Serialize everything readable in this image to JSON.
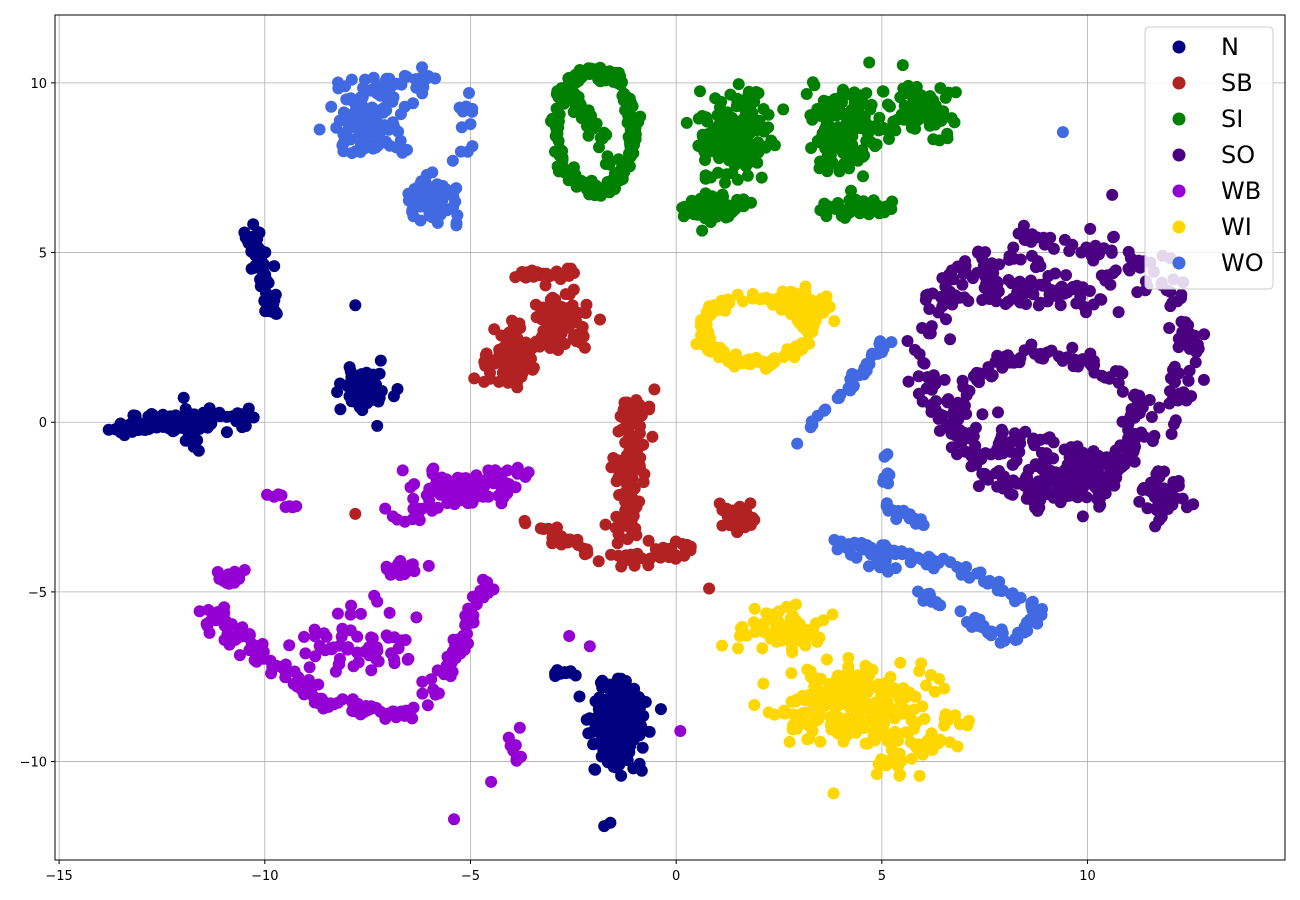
{
  "chart_data": {
    "type": "scatter",
    "title": "",
    "xlabel": "",
    "ylabel": "",
    "xlim": [
      -15.1,
      14.8
    ],
    "ylim": [
      -12.9,
      12.0
    ],
    "xticks": [
      -15,
      -10,
      -5,
      0,
      5,
      10
    ],
    "yticks": [
      -10,
      -5,
      0,
      5,
      10
    ],
    "grid": true,
    "legend_position": "top-right",
    "series": [
      {
        "name": "N",
        "color": "#000080",
        "clusters": [
          {
            "shape": "blob",
            "center": [
              -12.0,
              0.0
            ],
            "spread": [
              1.2,
              0.25
            ],
            "n": 70
          },
          {
            "shape": "segment",
            "from": [
              -13.7,
              -0.2
            ],
            "to": [
              -10.2,
              0.25
            ],
            "jitter": 0.08,
            "n": 60
          },
          {
            "shape": "segment",
            "from": [
              -11.9,
              0.7
            ],
            "to": [
              -11.8,
              -1.0
            ],
            "jitter": 0.12,
            "n": 20
          },
          {
            "shape": "segment",
            "from": [
              -10.35,
              5.8
            ],
            "to": [
              -9.8,
              3.2
            ],
            "jitter": 0.1,
            "n": 55
          },
          {
            "shape": "blob",
            "center": [
              -7.6,
              1.0
            ],
            "spread": [
              0.45,
              0.55
            ],
            "n": 90
          },
          {
            "shape": "point",
            "center": [
              -7.8,
              3.45
            ]
          },
          {
            "shape": "blob",
            "center": [
              -1.4,
              -8.8
            ],
            "spread": [
              0.55,
              1.1
            ],
            "n": 220
          },
          {
            "shape": "segment",
            "from": [
              -3.3,
              -7.4
            ],
            "to": [
              -2.4,
              -7.4
            ],
            "jitter": 0.05,
            "n": 10
          },
          {
            "shape": "point",
            "center": [
              -1.6,
              -11.8
            ]
          },
          {
            "shape": "point",
            "center": [
              -1.75,
              -11.9
            ]
          }
        ]
      },
      {
        "name": "SB",
        "color": "#b22222",
        "clusters": [
          {
            "shape": "blob",
            "center": [
              -4.0,
              1.8
            ],
            "spread": [
              0.55,
              0.8
            ],
            "n": 110
          },
          {
            "shape": "blob",
            "center": [
              -2.8,
              3.0
            ],
            "spread": [
              0.55,
              0.75
            ],
            "n": 110
          },
          {
            "shape": "segment",
            "from": [
              -3.8,
              4.3
            ],
            "to": [
              -2.4,
              4.4
            ],
            "jitter": 0.08,
            "n": 25
          },
          {
            "shape": "segment",
            "from": [
              -1.0,
              0.8
            ],
            "to": [
              -1.2,
              -3.5
            ],
            "jitter": 0.2,
            "n": 110
          },
          {
            "shape": "segment",
            "from": [
              -3.8,
              -2.8
            ],
            "to": [
              -1.7,
              -4.1
            ],
            "jitter": 0.1,
            "n": 25
          },
          {
            "shape": "segment",
            "from": [
              -1.4,
              -4.1
            ],
            "to": [
              0.6,
              -3.7
            ],
            "jitter": 0.15,
            "n": 40
          },
          {
            "shape": "blob",
            "center": [
              1.5,
              -2.8
            ],
            "spread": [
              0.4,
              0.3
            ],
            "n": 45
          },
          {
            "shape": "point",
            "center": [
              -7.8,
              -2.7
            ]
          },
          {
            "shape": "point",
            "center": [
              0.8,
              -4.9
            ]
          },
          {
            "shape": "point",
            "center": [
              2.9,
              -6.2
            ]
          }
        ]
      },
      {
        "name": "SI",
        "color": "#008000",
        "clusters": [
          {
            "shape": "ring",
            "center": [
              -2.0,
              8.6
            ],
            "radius": [
              0.95,
              1.75
            ],
            "n": 200
          },
          {
            "shape": "segment",
            "from": [
              -2.6,
              9.7
            ],
            "to": [
              -1.5,
              7.5
            ],
            "jitter": 0.15,
            "n": 30
          },
          {
            "shape": "blob",
            "center": [
              1.5,
              8.5
            ],
            "spread": [
              0.8,
              1.3
            ],
            "n": 140
          },
          {
            "shape": "blob",
            "center": [
              1.0,
              6.3
            ],
            "spread": [
              0.6,
              0.35
            ],
            "n": 70
          },
          {
            "shape": "blob",
            "center": [
              4.0,
              8.6
            ],
            "spread": [
              0.9,
              1.1
            ],
            "n": 140
          },
          {
            "shape": "blob",
            "center": [
              5.9,
              9.3
            ],
            "spread": [
              0.7,
              0.7
            ],
            "n": 80
          },
          {
            "shape": "blob",
            "center": [
              4.5,
              6.3
            ],
            "spread": [
              0.8,
              0.25
            ],
            "n": 50
          }
        ]
      },
      {
        "name": "SO",
        "color": "#4b0082",
        "clusters": [
          {
            "shape": "ring",
            "center": [
              9.3,
              2.0
            ],
            "radius": [
              3.2,
              3.4
            ],
            "n": 260
          },
          {
            "shape": "ring",
            "center": [
              9.0,
              0.0
            ],
            "radius": [
              2.2,
              2.0
            ],
            "n": 170
          },
          {
            "shape": "blob",
            "center": [
              8.8,
              4.0
            ],
            "spread": [
              1.8,
              0.6
            ],
            "n": 90
          },
          {
            "shape": "blob",
            "center": [
              9.4,
              -1.9
            ],
            "spread": [
              1.2,
              0.6
            ],
            "n": 80
          },
          {
            "shape": "blob",
            "center": [
              11.8,
              -2.3
            ],
            "spread": [
              0.5,
              0.6
            ],
            "n": 50
          },
          {
            "shape": "segment",
            "from": [
              7.7,
              0.0
            ],
            "to": [
              10.8,
              -1.5
            ],
            "jitter": 0.2,
            "n": 40
          },
          {
            "shape": "point",
            "center": [
              10.6,
              6.7
            ]
          }
        ]
      },
      {
        "name": "WB",
        "color": "#9400d3",
        "clusters": [
          {
            "shape": "blob",
            "center": [
              -5.3,
              -1.9
            ],
            "spread": [
              0.9,
              0.35
            ],
            "n": 110
          },
          {
            "shape": "segment",
            "from": [
              -6.7,
              -2.9
            ],
            "to": [
              -3.5,
              -1.4
            ],
            "jitter": 0.2,
            "n": 40
          },
          {
            "shape": "segment",
            "from": [
              -9.9,
              -2.1
            ],
            "to": [
              -9.1,
              -2.6
            ],
            "jitter": 0.05,
            "n": 8
          },
          {
            "shape": "blob",
            "center": [
              -10.8,
              -4.6
            ],
            "spread": [
              0.3,
              0.2
            ],
            "n": 25
          },
          {
            "shape": "segment",
            "from": [
              -11.3,
              -5.7
            ],
            "to": [
              -10.1,
              -6.9
            ],
            "jitter": 0.2,
            "n": 40
          },
          {
            "shape": "segment",
            "from": [
              -10.1,
              -6.9
            ],
            "to": [
              -8.6,
              -8.3
            ],
            "jitter": 0.12,
            "n": 35
          },
          {
            "shape": "segment",
            "from": [
              -8.6,
              -8.3
            ],
            "to": [
              -6.4,
              -8.6
            ],
            "jitter": 0.1,
            "n": 35
          },
          {
            "shape": "segment",
            "from": [
              -6.3,
              -8.4
            ],
            "to": [
              -5.0,
              -6.3
            ],
            "jitter": 0.15,
            "n": 25
          },
          {
            "shape": "segment",
            "from": [
              -5.4,
              -6.6
            ],
            "to": [
              -4.5,
              -4.6
            ],
            "jitter": 0.1,
            "n": 25
          },
          {
            "shape": "blob",
            "center": [
              -7.7,
              -6.5
            ],
            "spread": [
              1.4,
              0.9
            ],
            "n": 60
          },
          {
            "shape": "blob",
            "center": [
              -6.6,
              -4.3
            ],
            "spread": [
              0.4,
              0.2
            ],
            "n": 20
          },
          {
            "shape": "segment",
            "from": [
              -4.1,
              -9.3
            ],
            "to": [
              -3.8,
              -10.0
            ],
            "jitter": 0.05,
            "n": 10
          },
          {
            "shape": "point",
            "center": [
              -3.8,
              -9.0
            ]
          },
          {
            "shape": "point",
            "center": [
              -4.5,
              -10.6
            ]
          },
          {
            "shape": "point",
            "center": [
              -5.4,
              -11.7
            ]
          },
          {
            "shape": "point",
            "center": [
              0.1,
              -9.1
            ]
          },
          {
            "shape": "point",
            "center": [
              -2.6,
              -6.3
            ]
          },
          {
            "shape": "point",
            "center": [
              -2.1,
              -6.6
            ]
          }
        ]
      },
      {
        "name": "WI",
        "color": "#ffd700",
        "clusters": [
          {
            "shape": "ring",
            "center": [
              1.9,
              2.7
            ],
            "radius": [
              1.3,
              0.95
            ],
            "n": 140
          },
          {
            "shape": "blob",
            "center": [
              3.2,
              3.5
            ],
            "spread": [
              0.6,
              0.5
            ],
            "n": 60
          },
          {
            "shape": "blob",
            "center": [
              4.3,
              -8.3
            ],
            "spread": [
              1.5,
              1.0
            ],
            "n": 230
          },
          {
            "shape": "blob",
            "center": [
              2.6,
              -6.2
            ],
            "spread": [
              0.9,
              0.6
            ],
            "n": 80
          },
          {
            "shape": "segment",
            "from": [
              5.0,
              -10.2
            ],
            "to": [
              7.0,
              -8.9
            ],
            "jitter": 0.25,
            "n": 40
          }
        ]
      },
      {
        "name": "WO",
        "color": "#4169e1",
        "clusters": [
          {
            "shape": "blob",
            "center": [
              -7.5,
              8.8
            ],
            "spread": [
              0.8,
              0.8
            ],
            "n": 110
          },
          {
            "shape": "segment",
            "from": [
              -8.2,
              9.8
            ],
            "to": [
              -5.8,
              10.1
            ],
            "jitter": 0.15,
            "n": 30
          },
          {
            "shape": "blob",
            "center": [
              -6.0,
              6.5
            ],
            "spread": [
              0.5,
              0.6
            ],
            "n": 60
          },
          {
            "shape": "segment",
            "from": [
              -5.0,
              9.8
            ],
            "to": [
              -5.4,
              5.4
            ],
            "jitter": 0.15,
            "n": 20
          },
          {
            "shape": "segment",
            "from": [
              2.8,
              -0.7
            ],
            "to": [
              5.2,
              2.4
            ],
            "jitter": 0.08,
            "n": 35
          },
          {
            "shape": "segment",
            "from": [
              5.0,
              -0.9
            ],
            "to": [
              5.2,
              -2.8
            ],
            "jitter": 0.1,
            "n": 12
          },
          {
            "shape": "segment",
            "from": [
              5.2,
              -2.6
            ],
            "to": [
              6.0,
              -2.9
            ],
            "jitter": 0.1,
            "n": 10
          },
          {
            "shape": "segment",
            "from": [
              3.8,
              -3.5
            ],
            "to": [
              7.0,
              -4.3
            ],
            "jitter": 0.1,
            "n": 45
          },
          {
            "shape": "segment",
            "from": [
              7.0,
              -4.3
            ],
            "to": [
              8.9,
              -5.6
            ],
            "jitter": 0.08,
            "n": 25
          },
          {
            "shape": "segment",
            "from": [
              8.9,
              -5.6
            ],
            "to": [
              8.2,
              -6.5
            ],
            "jitter": 0.08,
            "n": 15
          },
          {
            "shape": "segment",
            "from": [
              8.2,
              -6.5
            ],
            "to": [
              5.8,
              -5.0
            ],
            "jitter": 0.08,
            "n": 30
          },
          {
            "shape": "segment",
            "from": [
              4.2,
              -3.8
            ],
            "to": [
              5.0,
              -4.3
            ],
            "jitter": 0.15,
            "n": 12
          },
          {
            "shape": "point",
            "center": [
              9.4,
              8.55
            ]
          }
        ]
      }
    ]
  }
}
